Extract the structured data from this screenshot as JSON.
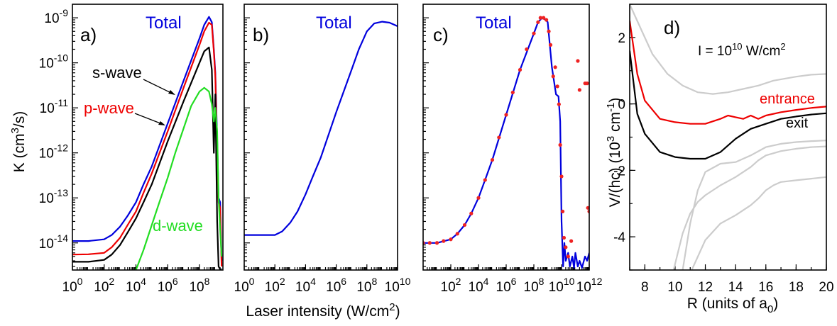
{
  "figure": {
    "shared_xlabel_main": "Laser intensity (W/cm",
    "shared_xlabel_sup": "2",
    "shared_xlabel_tail": ")"
  },
  "chart_data": [
    {
      "panel": "a)",
      "type": "line",
      "xscale": "log",
      "yscale": "log",
      "xlim": [
        1,
        3000000000.0
      ],
      "ylim": [
        2.5e-15,
        2e-09
      ],
      "ylabel": {
        "main": "K (cm",
        "sup": "3",
        "tail": "/s)"
      },
      "xticks": [
        {
          "base": "10",
          "exp": "0",
          "v": 1
        },
        {
          "base": "10",
          "exp": "2",
          "v": 100
        },
        {
          "base": "10",
          "exp": "4",
          "v": 10000.0
        },
        {
          "base": "10",
          "exp": "6",
          "v": 1000000.0
        },
        {
          "base": "10",
          "exp": "8",
          "v": 100000000.0
        }
      ],
      "yticks": [
        {
          "base": "10",
          "exp": "-14",
          "v": 1e-14
        },
        {
          "base": "10",
          "exp": "-13",
          "v": 1e-13
        },
        {
          "base": "10",
          "exp": "-12",
          "v": 1e-12
        },
        {
          "base": "10",
          "exp": "-11",
          "v": 1e-11
        },
        {
          "base": "10",
          "exp": "-10",
          "v": 1e-10
        },
        {
          "base": "10",
          "exp": "-9",
          "v": 1e-09
        }
      ],
      "series": [
        {
          "name": "Total",
          "color": "#0000dd",
          "x": [
            1,
            10,
            100,
            300,
            1000,
            3000,
            10000.0,
            30000.0,
            100000.0,
            1000000.0,
            10000000.0,
            100000000.0,
            200000000.0,
            400000000.0,
            600000000.0,
            800000000.0,
            1000000000.0,
            1300000000.0,
            1600000000.0,
            2000000000.0,
            2500000000.0
          ],
          "y": [
            1.1e-14,
            1.1e-14,
            1.2e-14,
            1.5e-14,
            2.3e-14,
            4e-14,
            8e-14,
            2e-13,
            5e-13,
            4.5e-12,
            4e-11,
            3.5e-10,
            7e-10,
            1.05e-09,
            8e-10,
            2e-10,
            6e-11,
            2e-12,
            1e-13,
            8e-14,
            4e-15
          ]
        },
        {
          "name": "p-wave",
          "color": "#ee0000",
          "x": [
            1,
            10,
            100,
            300,
            1000,
            3000,
            10000.0,
            30000.0,
            100000.0,
            1000000.0,
            10000000.0,
            100000000.0,
            200000000.0,
            400000000.0,
            600000000.0,
            800000000.0,
            1000000000.0,
            1300000000.0,
            1600000000.0,
            2000000000.0,
            2500000000.0
          ],
          "y": [
            5.5e-15,
            5.6e-15,
            6e-15,
            8e-15,
            1.3e-14,
            2.5e-14,
            5e-14,
            1.3e-13,
            3.5e-13,
            3e-12,
            2.8e-11,
            2.5e-10,
            5e-10,
            7.8e-10,
            7e-10,
            1.8e-10,
            5e-11,
            1e-12,
            8e-14,
            6e-14,
            3e-15
          ]
        },
        {
          "name": "s-wave",
          "color": "#000000",
          "x": [
            1,
            10,
            100,
            300,
            1000,
            3000,
            10000.0,
            30000.0,
            100000.0,
            1000000.0,
            10000000.0,
            100000000.0,
            200000000.0,
            400000000.0,
            600000000.0,
            800000000.0,
            1000000000.0,
            1300000000.0,
            1600000000.0,
            2000000000.0,
            2500000000.0
          ],
          "y": [
            3.8e-15,
            3.8e-15,
            4.2e-15,
            5.5e-15,
            9e-15,
            1.7e-14,
            3.5e-14,
            8e-14,
            2e-13,
            1.8e-12,
            1.4e-11,
            1e-10,
            1.8e-10,
            2.2e-10,
            7e-11,
            1e-12,
            2e-11,
            3e-14,
            3e-15,
            2.6e-15,
            2.6e-15
          ]
        },
        {
          "name": "d-wave",
          "color": "#22dd22",
          "x": [
            10000.0,
            30000.0,
            100000.0,
            300000.0,
            1000000.0,
            3000000.0,
            10000000.0,
            30000000.0,
            100000000.0,
            200000000.0,
            400000000.0,
            600000000.0,
            800000000.0,
            1000000000.0,
            1300000000.0,
            1600000000.0,
            2000000000.0,
            2500000000.0
          ],
          "y": [
            2.5e-15,
            7e-15,
            2.5e-14,
            8e-14,
            2.8e-13,
            1e-12,
            3.5e-12,
            1.1e-11,
            2.3e-11,
            2.8e-11,
            2.3e-11,
            1.2e-11,
            5e-12,
            1e-11,
            3e-12,
            1e-13,
            2e-14,
            5e-15
          ]
        }
      ],
      "annotations": [
        {
          "text": "Total",
          "color": "#0000dd"
        },
        {
          "text": "s-wave",
          "color": "#000000"
        },
        {
          "text": "p-wave",
          "color": "#ee0000"
        },
        {
          "text": "d-wave",
          "color": "#22dd22"
        }
      ]
    },
    {
      "panel": "b)",
      "type": "line",
      "xscale": "log",
      "yscale": "log",
      "xlim": [
        1,
        10000000000.0
      ],
      "ylim": [
        2.5e-15,
        2e-09
      ],
      "xticks": [
        {
          "base": "10",
          "exp": "0",
          "v": 1
        },
        {
          "base": "10",
          "exp": "2",
          "v": 100
        },
        {
          "base": "10",
          "exp": "4",
          "v": 10000.0
        },
        {
          "base": "10",
          "exp": "6",
          "v": 1000000.0
        },
        {
          "base": "10",
          "exp": "8",
          "v": 100000000.0
        },
        {
          "base": "10",
          "exp": "10",
          "v": 10000000000.0
        }
      ],
      "series": [
        {
          "name": "Total",
          "color": "#0000dd",
          "x": [
            1,
            10,
            100,
            300,
            1000,
            3000,
            10000.0,
            30000.0,
            100000.0,
            1000000.0,
            10000000.0,
            30000000.0,
            100000000.0,
            300000000.0,
            1000000000.0,
            3000000000.0,
            10000000000.0
          ],
          "y": [
            1.5e-14,
            1.5e-14,
            1.5e-14,
            1.8e-14,
            2.8e-14,
            5e-14,
            1.2e-13,
            3e-13,
            8e-13,
            8e-12,
            7e-11,
            2e-10,
            5e-10,
            7.5e-10,
            8.2e-10,
            7.8e-10,
            6.5e-10
          ]
        }
      ],
      "annotations": [
        {
          "text": "Total",
          "color": "#0000dd"
        }
      ]
    },
    {
      "panel": "c)",
      "type": "line",
      "xscale": "log",
      "yscale": "log",
      "xlim": [
        1,
        1000000000000.0
      ],
      "ylim": [
        2.5e-15,
        2e-09
      ],
      "xticks": [
        {
          "base": "10",
          "exp": "2",
          "v": 100
        },
        {
          "base": "10",
          "exp": "4",
          "v": 10000.0
        },
        {
          "base": "10",
          "exp": "6",
          "v": 1000000.0
        },
        {
          "base": "10",
          "exp": "8",
          "v": 100000000.0
        },
        {
          "base": "10",
          "exp": "10",
          "v": 10000000000.0
        },
        {
          "base": "10",
          "exp": "12",
          "v": 1000000000000.0
        }
      ],
      "series": [
        {
          "name": "Total",
          "color": "#0000dd",
          "style": "line",
          "x": [
            1,
            10,
            100,
            300,
            1000,
            3000,
            10000.0,
            30000.0,
            100000.0,
            1000000.0,
            10000000.0,
            100000000.0,
            200000000.0,
            400000000.0,
            700000000.0,
            1000000000.0,
            2000000000.0,
            4000000000.0,
            6000000000.0,
            8000000000.0,
            10000000000.0,
            13000000000.0,
            16000000000.0,
            20000000000.0,
            30000000000.0,
            40000000000.0,
            60000000000.0,
            80000000000.0,
            100000000000.0,
            150000000000.0,
            200000000000.0,
            300000000000.0,
            500000000000.0,
            700000000000.0,
            1000000000000.0
          ],
          "y": [
            1e-14,
            1e-14,
            1.2e-14,
            1.6e-14,
            2.5e-14,
            4.5e-14,
            1e-13,
            2.5e-13,
            7e-13,
            7e-12,
            7e-11,
            4.5e-10,
            8e-10,
            1e-09,
            9e-10,
            8e-10,
            8e-11,
            2e-11,
            1.8e-11,
            5e-12,
            3e-14,
            3e-15,
            1e-14,
            4e-15,
            6e-15,
            3e-15,
            5e-15,
            2.8e-15,
            6e-15,
            3e-15,
            4e-15,
            2.8e-15,
            5e-15,
            4e-15,
            6e-15
          ]
        },
        {
          "name": "",
          "color": "#ee2222",
          "style": "markers",
          "x": [
            1,
            3,
            10,
            30,
            100,
            300,
            1000,
            3000,
            10000.0,
            30000.0,
            100000.0,
            300000.0,
            1000000.0,
            3000000.0,
            10000000.0,
            30000000.0,
            100000000.0,
            200000000.0,
            300000000.0,
            500000000.0,
            800000000.0,
            1200000000.0,
            1600000000.0,
            2500000000.0,
            3500000000.0,
            5000000000.0,
            6500000000.0,
            8000000000.0,
            10000000000.0,
            12000000000.0,
            15000000000.0,
            20000000000.0,
            30000000000.0,
            50000000000.0,
            150000000000.0,
            200000000000.0,
            500000000000.0,
            700000000000.0,
            800000000000.0,
            1000000000000.0
          ],
          "y": [
            1e-14,
            1e-14,
            1e-14,
            1.1e-14,
            1.2e-14,
            1.6e-14,
            2.5e-14,
            4.5e-14,
            1e-13,
            2.5e-13,
            7e-13,
            2.2e-12,
            7e-12,
            2.2e-11,
            7e-11,
            2e-10,
            4.5e-10,
            8e-10,
            1e-09,
            1e-09,
            9e-10,
            5e-10,
            2.5e-10,
            5e-11,
            8e-11,
            3e-11,
            1.2e-11,
            1.5e-12,
            3e-13,
            5e-14,
            1.3e-14,
            8e-15,
            5e-15,
            1.1e-14,
            1.1e-10,
            2.5e-11,
            3.5e-11,
            3.5e-11,
            6e-14,
            5e-14
          ]
        }
      ],
      "annotations": [
        {
          "text": "Total",
          "color": "#0000dd"
        }
      ]
    },
    {
      "panel": "d)",
      "type": "line",
      "xscale": "linear",
      "yscale": "linear",
      "xlim": [
        7,
        20
      ],
      "ylim": [
        -5,
        3
      ],
      "xlabel": {
        "main": "R (units of a",
        "sub": "0",
        "tail": ")"
      },
      "ylabel": {
        "main": "V/(hc)  (10",
        "sup": "3",
        "mid": " cm",
        "sup2": "-1",
        "tail": ")"
      },
      "xticks": [
        8,
        10,
        12,
        14,
        16,
        18,
        20
      ],
      "yticks": [
        -4,
        -2,
        0,
        2
      ],
      "legend_text": {
        "main": "I = 10",
        "sup": "10",
        "tail": " W/cm",
        "sup2": "2"
      },
      "series": [
        {
          "name": "entrance",
          "color": "#ee0000",
          "x": [
            7,
            7.5,
            8,
            9,
            10,
            11,
            12,
            13,
            13.5,
            14,
            14.5,
            15,
            15.5,
            16,
            17,
            18,
            19,
            20
          ],
          "y": [
            2.5,
            0.9,
            0.1,
            -0.45,
            -0.55,
            -0.6,
            -0.6,
            -0.45,
            -0.35,
            -0.4,
            -0.45,
            -0.35,
            -0.45,
            -0.35,
            -0.25,
            -0.18,
            -0.12,
            -0.08
          ]
        },
        {
          "name": "exit",
          "color": "#000000",
          "x": [
            7,
            7.5,
            8,
            9,
            10,
            11,
            12,
            13,
            14,
            14.5,
            15,
            16,
            17,
            18,
            19,
            20
          ],
          "y": [
            1.6,
            -0.3,
            -0.9,
            -1.45,
            -1.6,
            -1.65,
            -1.65,
            -1.45,
            -1.05,
            -0.9,
            -0.75,
            -0.6,
            -0.45,
            -0.38,
            -0.32,
            -0.28
          ]
        },
        {
          "name": "",
          "color": "#cccccc",
          "x": [
            7,
            7.8,
            8.5,
            9.5,
            10.5,
            11.5,
            12.5,
            13.5,
            14.5,
            15.5,
            16.5,
            18,
            19,
            20
          ],
          "y": [
            3,
            2.2,
            1.5,
            0.9,
            0.55,
            0.35,
            0.3,
            0.35,
            0.45,
            0.55,
            0.7,
            0.82,
            0.88,
            0.9
          ]
        },
        {
          "name": "",
          "color": "#cccccc",
          "x": [
            10.5,
            11,
            11.5,
            12,
            13,
            14,
            15,
            16,
            17,
            18,
            19,
            20
          ],
          "y": [
            -5,
            -3.6,
            -2.6,
            -2.05,
            -1.8,
            -1.75,
            -1.55,
            -1.3,
            -1.2,
            -1.15,
            -1.12,
            -1.1
          ]
        },
        {
          "name": "",
          "color": "#cccccc",
          "x": [
            9.9,
            10.5,
            11,
            11.5,
            12,
            13,
            14,
            15,
            15.5,
            16,
            17,
            18,
            19,
            20
          ],
          "y": [
            -5,
            -3.9,
            -3.3,
            -2.95,
            -2.75,
            -2.45,
            -2.2,
            -1.9,
            -1.7,
            -1.55,
            -1.42,
            -1.35,
            -1.3,
            -1.28
          ]
        },
        {
          "name": "",
          "color": "#cccccc",
          "x": [
            11.1,
            12,
            13,
            14,
            15,
            15.5,
            16,
            16.5,
            17,
            18,
            19,
            20
          ],
          "y": [
            -5,
            -4.1,
            -3.6,
            -3.35,
            -3.05,
            -2.85,
            -2.6,
            -2.45,
            -2.35,
            -2.3,
            -2.25,
            -2.2
          ]
        }
      ]
    }
  ]
}
